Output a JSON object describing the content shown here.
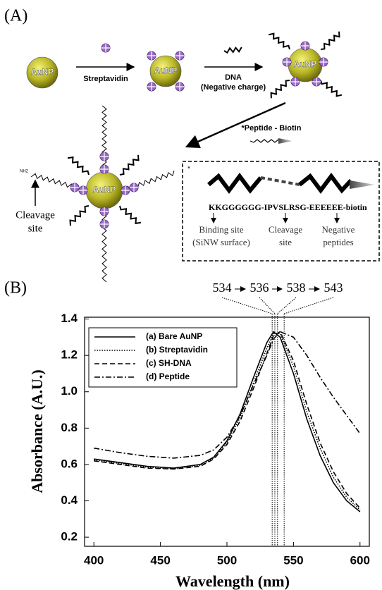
{
  "panel_a": {
    "label": "(A)",
    "particles": [
      "AuNP",
      "AuNP",
      "AuNP",
      "AuNP"
    ],
    "step1": "Streptavidin",
    "step2": [
      "DNA",
      "(Negative charge)"
    ],
    "peptide_title": "*Peptide - Biotin",
    "amine": "NH2",
    "cleavage": [
      "Cleavage",
      "site"
    ],
    "box": {
      "star": "*",
      "sequence": "KKGGGGGG-IPVSLRSG-EEEEEE-biotin",
      "parts": [
        [
          "Binding site",
          "(SiNW surface)"
        ],
        [
          "Cleavage",
          "site"
        ],
        [
          "Negative",
          "peptides"
        ]
      ]
    }
  },
  "chart_data": {
    "type": "line",
    "panel_label": "(B)",
    "xlabel": "Wavelength (nm)",
    "ylabel": "Absorbance (A.U.)",
    "x": [
      400,
      420,
      440,
      460,
      480,
      490,
      500,
      510,
      520,
      530,
      535,
      540,
      550,
      560,
      570,
      580,
      590,
      600
    ],
    "series": [
      {
        "name": "(a) Bare AuNP",
        "color": "#000000",
        "dash": "solid",
        "values": [
          0.63,
          0.61,
          0.59,
          0.58,
          0.6,
          0.64,
          0.73,
          0.88,
          1.08,
          1.27,
          1.33,
          1.3,
          1.1,
          0.85,
          0.65,
          0.5,
          0.4,
          0.34
        ]
      },
      {
        "name": "(b) Streptavidin",
        "color": "#000000",
        "dash": "dotted",
        "values": [
          0.625,
          0.605,
          0.585,
          0.575,
          0.595,
          0.635,
          0.72,
          0.86,
          1.05,
          1.24,
          1.32,
          1.32,
          1.14,
          0.89,
          0.69,
          0.53,
          0.42,
          0.35
        ]
      },
      {
        "name": "(c) SH-DNA",
        "color": "#000000",
        "dash": "dashed",
        "values": [
          0.62,
          0.6,
          0.58,
          0.575,
          0.59,
          0.63,
          0.71,
          0.84,
          1.02,
          1.21,
          1.31,
          1.33,
          1.17,
          0.93,
          0.72,
          0.56,
          0.44,
          0.36
        ]
      },
      {
        "name": "(d) Peptide",
        "color": "#000000",
        "dash": "dashdot",
        "values": [
          0.69,
          0.665,
          0.645,
          0.635,
          0.65,
          0.68,
          0.75,
          0.87,
          1.04,
          1.2,
          1.29,
          1.33,
          1.3,
          1.2,
          1.08,
          0.97,
          0.87,
          0.77
        ]
      }
    ],
    "peaks": [
      534,
      536,
      538,
      543
    ],
    "xlim": [
      393,
      607
    ],
    "ylim": [
      0.15,
      1.41
    ],
    "xticks": [
      400,
      450,
      500,
      550,
      600
    ],
    "yticks": [
      0.2,
      0.4,
      0.6,
      0.8,
      {
        "value": 1.0,
        "label": "1.0"
      },
      1.2,
      1.4
    ],
    "legend": "upper left"
  }
}
